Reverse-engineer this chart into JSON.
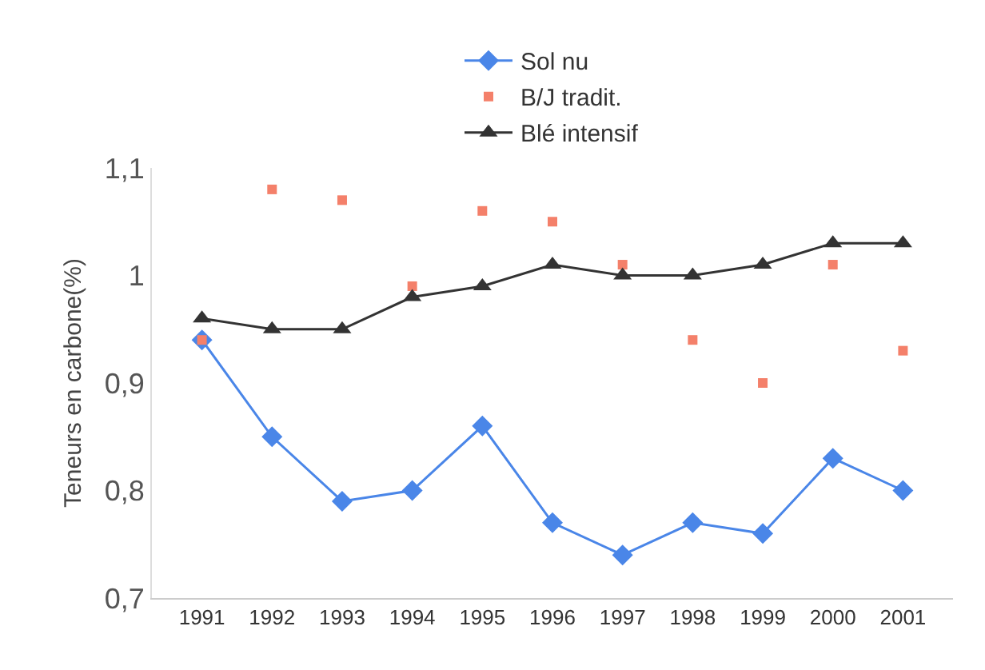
{
  "chart_data": {
    "type": "line",
    "ylabel": "Teneurs en carbone(%)",
    "categories": [
      "1991",
      "1992",
      "1993",
      "1994",
      "1995",
      "1996",
      "1997",
      "1998",
      "1999",
      "2000",
      "2001"
    ],
    "series": [
      {
        "name": "Sol nu",
        "color": "#4a86e8",
        "marker": "diamond",
        "values": [
          0.94,
          0.85,
          0.79,
          0.8,
          0.86,
          0.77,
          0.74,
          0.77,
          0.76,
          0.83,
          0.8
        ]
      },
      {
        "name": "B/J tradit.",
        "type": "scatter",
        "color": "#f4806a",
        "marker": "square",
        "values": [
          0.94,
          1.08,
          1.07,
          0.99,
          1.06,
          1.05,
          1.01,
          0.94,
          0.9,
          1.01,
          0.93
        ]
      },
      {
        "name": "Blé intensif",
        "color": "#333333",
        "marker": "triangle",
        "values": [
          0.96,
          0.95,
          0.95,
          0.98,
          0.99,
          1.01,
          1.0,
          1.0,
          1.01,
          1.03,
          1.03
        ]
      }
    ],
    "ylim": [
      0.7,
      1.1
    ],
    "yticks": [
      {
        "value": 0.7,
        "label": "0,7"
      },
      {
        "value": 0.8,
        "label": "0,8"
      },
      {
        "value": 0.9,
        "label": "0,9"
      },
      {
        "value": 1,
        "label": "1"
      },
      {
        "value": 1.1,
        "label": "1,1"
      }
    ],
    "grid": false,
    "legend": "top",
    "line_style": "solid"
  }
}
